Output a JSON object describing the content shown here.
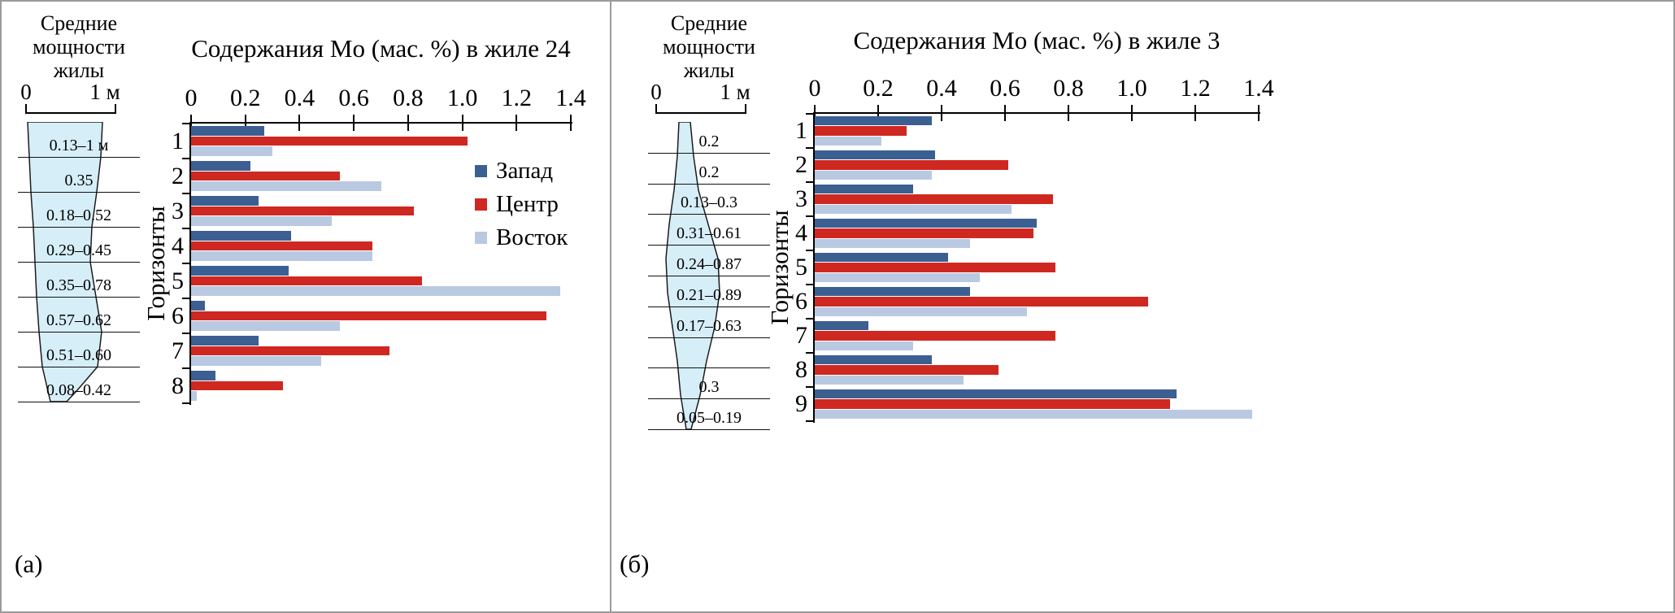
{
  "figure": {
    "background": "#ffffff",
    "border_color": "#9b9b9b",
    "panels": [
      {
        "letter": "(а)",
        "vein_diagram": {
          "title": "Средние мощности жилы",
          "title_lines": [
            "Средние",
            "мощности",
            "жилы"
          ],
          "scale_left": "0",
          "scale_right": "1 м",
          "interval_labels": [
            "0.13–1 м",
            "0.35",
            "0.18–0.52",
            "0.29–0.45",
            "0.35–0.78",
            "0.57–0.62",
            "0.51–0.60",
            "0.08–0.42"
          ],
          "fill_color": "#d6eef8"
        }
      },
      {
        "letter": "(б)",
        "vein_diagram": {
          "title": "Средние мощности жилы",
          "title_lines": [
            "Средние",
            "мощности",
            "жилы"
          ],
          "scale_left": "0",
          "scale_right": "1 м",
          "interval_labels": [
            "0.2",
            "0.2",
            "0.13–0.3",
            "0.31–0.61",
            "0.24–0.87",
            "0.21–0.89",
            "0.17–0.63",
            "",
            "0.3",
            "0.05–0.19"
          ],
          "fill_color": "#d6eef8"
        }
      }
    ]
  },
  "chart_data": [
    {
      "type": "bar",
      "orientation": "horizontal",
      "title": "Содержания Mo (мас. %) в жиле 24",
      "ylabel": "Горизонты",
      "categories": [
        "1",
        "2",
        "3",
        "4",
        "5",
        "6",
        "7",
        "8"
      ],
      "xlim": [
        0,
        1.4
      ],
      "x_ticks": [
        "0",
        "0.2",
        "0.4",
        "0.6",
        "0.8",
        "1.0",
        "1.2",
        "1.4"
      ],
      "grid": false,
      "legend": {
        "visible": true,
        "position": "inside-top-right"
      },
      "series": [
        {
          "name": "Запад",
          "color": "#3c5f92",
          "values": [
            0.27,
            0.22,
            0.25,
            0.37,
            0.36,
            0.05,
            0.25,
            0.09
          ]
        },
        {
          "name": "Центр",
          "color": "#cf2821",
          "values": [
            1.02,
            0.55,
            0.82,
            0.67,
            0.85,
            1.31,
            0.73,
            0.34
          ]
        },
        {
          "name": "Восток",
          "color": "#b9c9e1",
          "values": [
            0.3,
            0.7,
            0.52,
            0.67,
            1.36,
            0.55,
            0.48,
            0.02
          ]
        }
      ]
    },
    {
      "type": "bar",
      "orientation": "horizontal",
      "title": "Содержания Mo (мас. %) в жиле 3",
      "ylabel": "Горизонты",
      "categories": [
        "1",
        "2",
        "3",
        "4",
        "5",
        "6",
        "7",
        "8",
        "9"
      ],
      "xlim": [
        0,
        1.4
      ],
      "x_ticks": [
        "0",
        "0.2",
        "0.4",
        "0.6",
        "0.8",
        "1.0",
        "1.2",
        "1.4"
      ],
      "grid": false,
      "legend": {
        "visible": false
      },
      "series": [
        {
          "name": "Запад",
          "color": "#3c5f92",
          "values": [
            0.37,
            0.38,
            0.31,
            0.7,
            0.42,
            0.49,
            0.17,
            0.37,
            1.14
          ]
        },
        {
          "name": "Центр",
          "color": "#cf2821",
          "values": [
            0.29,
            0.61,
            0.75,
            0.69,
            0.76,
            1.05,
            0.76,
            0.58,
            1.12
          ]
        },
        {
          "name": "Восток",
          "color": "#b9c9e1",
          "values": [
            0.21,
            0.37,
            0.62,
            0.49,
            0.52,
            0.67,
            0.31,
            0.47,
            1.38
          ]
        }
      ]
    }
  ]
}
